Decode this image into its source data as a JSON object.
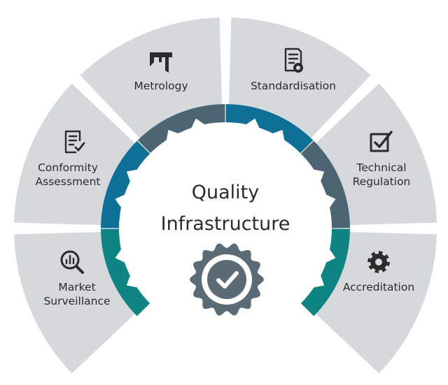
{
  "center": {
    "title_line1": "Quality",
    "title_line2": "Infrastructure",
    "emblem_icon": "check-badge-icon"
  },
  "segments": [
    {
      "id": "metrology",
      "lines": [
        "Metrology"
      ],
      "icon": "caliper-icon",
      "ring_color": "#4d6572"
    },
    {
      "id": "standardisation",
      "lines": [
        "Standardisation"
      ],
      "icon": "certificate-document-icon",
      "ring_color": "#0e6f97"
    },
    {
      "id": "technical-regulation",
      "lines": [
        "Technical",
        "Regulation"
      ],
      "icon": "checkbox-icon",
      "ring_color": "#4d6572"
    },
    {
      "id": "accreditation",
      "lines": [
        "Accreditation"
      ],
      "icon": "gear-icon",
      "ring_color": "#0f8583"
    },
    {
      "id": "market-surveillance",
      "lines": [
        "Market",
        "Surveillance"
      ],
      "icon": "magnifier-chart-icon",
      "ring_color": "#0f8583"
    },
    {
      "id": "conformity-assessment",
      "lines": [
        "Conformity",
        "Assessment"
      ],
      "icon": "checklist-icon",
      "ring_color": "#0e6f97"
    }
  ],
  "colors": {
    "segment_fill": "#d6d9dc",
    "text": "#2b2b2b",
    "icon": "#2b2b2b",
    "emblem": "#5a6b75"
  }
}
